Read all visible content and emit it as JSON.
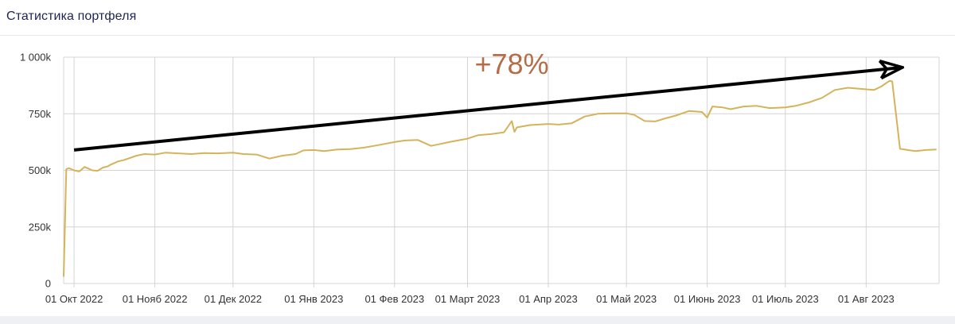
{
  "header": {
    "title": "Статистика портфеля"
  },
  "chart_data": {
    "type": "line",
    "title": "",
    "xlabel": "",
    "ylabel": "",
    "ylim": [
      0,
      1000000
    ],
    "y_ticks": [
      {
        "value": 0,
        "label": "0"
      },
      {
        "value": 250000,
        "label": "250k"
      },
      {
        "value": 500000,
        "label": "500k"
      },
      {
        "value": 750000,
        "label": "750k"
      },
      {
        "value": 1000000,
        "label": "1 000k"
      }
    ],
    "x_ticks": [
      {
        "date": "2022-10-01",
        "label": "01 Окт 2022"
      },
      {
        "date": "2022-11-01",
        "label": "01 Нояб 2022"
      },
      {
        "date": "2022-12-01",
        "label": "01 Дек 2022"
      },
      {
        "date": "2023-01-01",
        "label": "01 Янв 2023"
      },
      {
        "date": "2023-02-01",
        "label": "01 Фев 2023"
      },
      {
        "date": "2023-03-01",
        "label": "01 Март 2023"
      },
      {
        "date": "2023-04-01",
        "label": "01 Апр 2023"
      },
      {
        "date": "2023-05-01",
        "label": "01 Май 2023"
      },
      {
        "date": "2023-06-01",
        "label": "01 Июнь 2023"
      },
      {
        "date": "2023-07-01",
        "label": "01 Июль 2023"
      },
      {
        "date": "2023-08-01",
        "label": "01 Авг 2023"
      }
    ],
    "xlim": [
      "2022-09-27",
      "2023-08-29"
    ],
    "grid": true,
    "colors": {
      "line": "#d4b45a",
      "grid": "#d4d4d4",
      "arrow": "#000000"
    },
    "series": [
      {
        "x": [
          "2022-09-27",
          "2022-09-28",
          "2022-09-29",
          "2022-10-01",
          "2022-10-03",
          "2022-10-05",
          "2022-10-07",
          "2022-10-08",
          "2022-10-10",
          "2022-10-12",
          "2022-10-14",
          "2022-10-15",
          "2022-10-18",
          "2022-10-20",
          "2022-10-25",
          "2022-10-28",
          "2022-11-01",
          "2022-11-05",
          "2022-11-10",
          "2022-11-15",
          "2022-11-20",
          "2022-11-25",
          "2022-12-01",
          "2022-12-05",
          "2022-12-10",
          "2022-12-15",
          "2022-12-20",
          "2022-12-25",
          "2022-12-28",
          "2023-01-01",
          "2023-01-05",
          "2023-01-10",
          "2023-01-15",
          "2023-01-20",
          "2023-01-25",
          "2023-02-01",
          "2023-02-05",
          "2023-02-10",
          "2023-02-15",
          "2023-02-18",
          "2023-02-22",
          "2023-03-01",
          "2023-03-05",
          "2023-03-10",
          "2023-03-15",
          "2023-03-18",
          "2023-03-19",
          "2023-03-20",
          "2023-03-25",
          "2023-04-01",
          "2023-04-05",
          "2023-04-10",
          "2023-04-15",
          "2023-04-20",
          "2023-04-25",
          "2023-05-01",
          "2023-05-04",
          "2023-05-08",
          "2023-05-12",
          "2023-05-16",
          "2023-05-20",
          "2023-05-25",
          "2023-05-30",
          "2023-06-01",
          "2023-06-03",
          "2023-06-07",
          "2023-06-10",
          "2023-06-12",
          "2023-06-15",
          "2023-06-20",
          "2023-06-25",
          "2023-07-01",
          "2023-07-05",
          "2023-07-10",
          "2023-07-15",
          "2023-07-20",
          "2023-07-25",
          "2023-08-01",
          "2023-08-04",
          "2023-08-07",
          "2023-08-09",
          "2023-08-10",
          "2023-08-11",
          "2023-08-14",
          "2023-08-17",
          "2023-08-20",
          "2023-08-24",
          "2023-08-28"
        ],
        "y": [
          30000,
          505000,
          510000,
          500000,
          495000,
          515000,
          505000,
          500000,
          498000,
          512000,
          518000,
          525000,
          540000,
          545000,
          565000,
          572000,
          570000,
          578000,
          575000,
          572000,
          576000,
          575000,
          578000,
          572000,
          570000,
          552000,
          565000,
          572000,
          588000,
          590000,
          585000,
          592000,
          594000,
          600000,
          610000,
          625000,
          632000,
          634000,
          608000,
          615000,
          625000,
          640000,
          655000,
          660000,
          668000,
          718000,
          670000,
          690000,
          700000,
          705000,
          702000,
          708000,
          738000,
          750000,
          752000,
          752000,
          745000,
          718000,
          716000,
          730000,
          742000,
          762000,
          758000,
          733000,
          782000,
          778000,
          770000,
          775000,
          782000,
          785000,
          775000,
          778000,
          785000,
          800000,
          820000,
          855000,
          865000,
          858000,
          855000,
          872000,
          888000,
          895000,
          893000,
          595000,
          590000,
          585000,
          590000,
          592000
        ]
      }
    ],
    "annotations": [
      {
        "text": "+78%",
        "type": "trend-arrow",
        "arrow_from": {
          "x": "2022-10-01",
          "y": 590000
        },
        "arrow_to": {
          "x": "2023-08-15",
          "y": 955000
        }
      }
    ]
  }
}
